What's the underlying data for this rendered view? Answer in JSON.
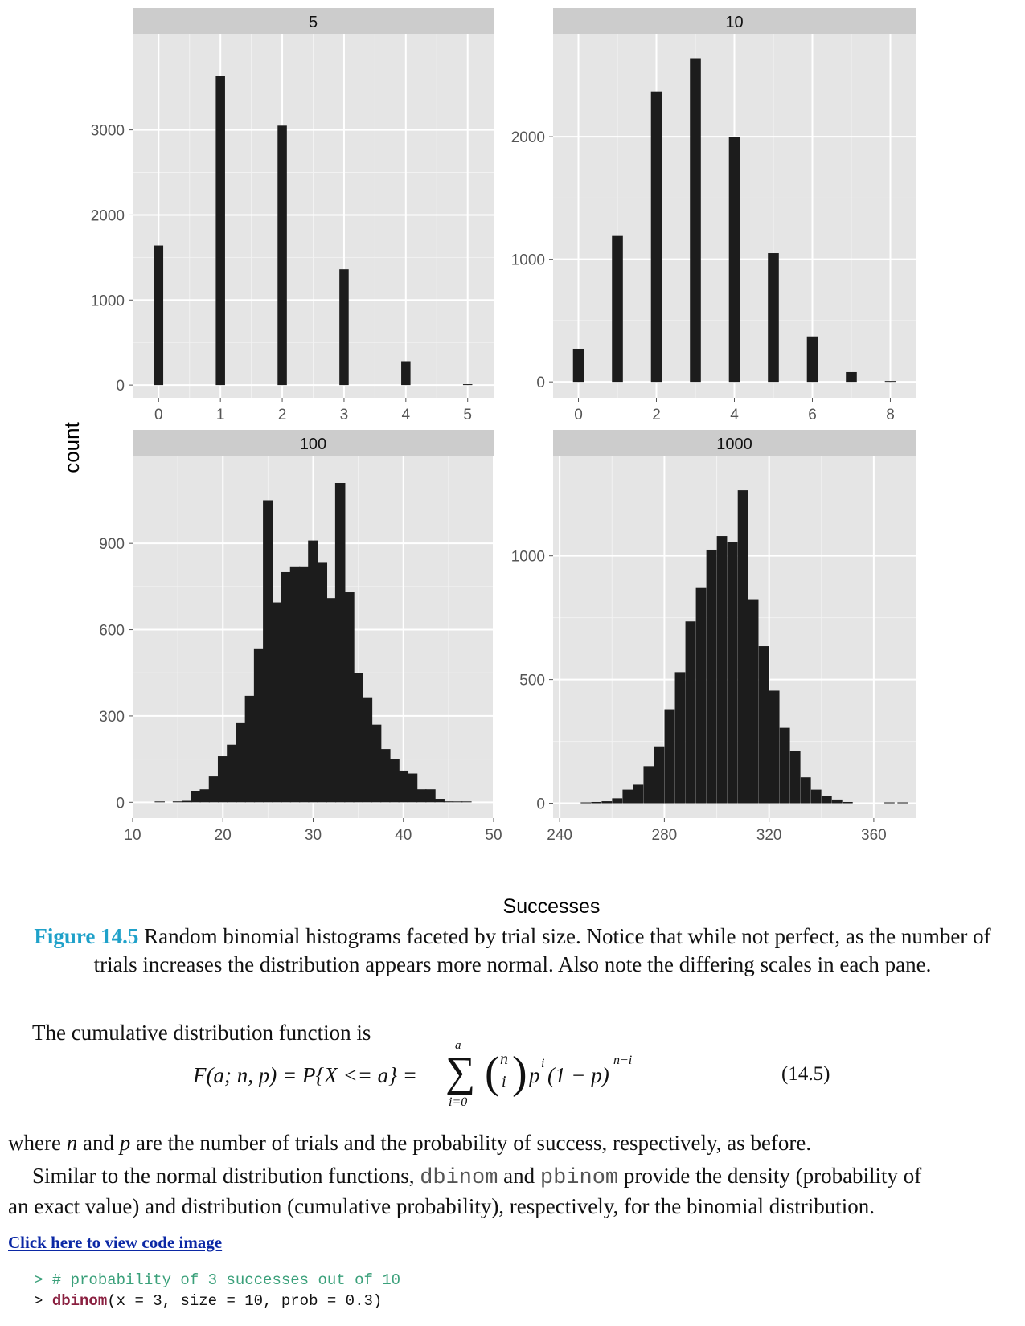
{
  "chart_data": [
    {
      "type": "bar",
      "title": "5",
      "x_ticks": [
        0,
        1,
        2,
        3,
        4,
        5
      ],
      "y_ticks": [
        0,
        1000,
        2000,
        3000
      ],
      "xlim": [
        -0.42,
        5.42
      ],
      "ylim": [
        -150,
        4130
      ],
      "bar_width": 0.15,
      "bars": [
        [
          0,
          1640
        ],
        [
          1,
          3630
        ],
        [
          2,
          3050
        ],
        [
          3,
          1360
        ],
        [
          4,
          280
        ],
        [
          5,
          10
        ]
      ]
    },
    {
      "type": "bar",
      "title": "10",
      "x_ticks": [
        0,
        2,
        4,
        6,
        8
      ],
      "y_ticks": [
        0,
        1000,
        2000
      ],
      "xlim": [
        -0.65,
        8.65
      ],
      "ylim": [
        -130,
        2840
      ],
      "bar_width": 0.28,
      "bars": [
        [
          0,
          270
        ],
        [
          1,
          1190
        ],
        [
          2,
          2370
        ],
        [
          3,
          2640
        ],
        [
          4,
          2000
        ],
        [
          5,
          1050
        ],
        [
          6,
          370
        ],
        [
          7,
          80
        ],
        [
          8,
          5
        ]
      ]
    },
    {
      "type": "bar",
      "title": "100",
      "x_ticks": [
        10,
        20,
        30,
        40,
        50
      ],
      "y_ticks": [
        0,
        300,
        600,
        900
      ],
      "xlim": [
        10,
        50
      ],
      "ylim": [
        -55,
        1205
      ],
      "bar_width": 1.12,
      "bars": [
        [
          13,
          2
        ],
        [
          15,
          3
        ],
        [
          16,
          5
        ],
        [
          17,
          40
        ],
        [
          18,
          45
        ],
        [
          19,
          90
        ],
        [
          20,
          160
        ],
        [
          21,
          200
        ],
        [
          22,
          275
        ],
        [
          23,
          370
        ],
        [
          24,
          535
        ],
        [
          25,
          1050
        ],
        [
          26,
          695
        ],
        [
          27,
          800
        ],
        [
          28,
          820
        ],
        [
          29,
          820
        ],
        [
          30,
          910
        ],
        [
          31,
          835
        ],
        [
          32,
          710
        ],
        [
          33,
          1110
        ],
        [
          34,
          730
        ],
        [
          35,
          450
        ],
        [
          36,
          365
        ],
        [
          37,
          270
        ],
        [
          38,
          185
        ],
        [
          39,
          150
        ],
        [
          40,
          110
        ],
        [
          41,
          100
        ],
        [
          42,
          45
        ],
        [
          43,
          45
        ],
        [
          44,
          12
        ],
        [
          45,
          3
        ],
        [
          46,
          2
        ],
        [
          47,
          1
        ]
      ]
    },
    {
      "type": "bar",
      "title": "1000",
      "x_ticks": [
        240,
        280,
        320,
        360
      ],
      "y_ticks": [
        0,
        500,
        1000
      ],
      "xlim": [
        237.5,
        376
      ],
      "ylim": [
        -60,
        1405
      ],
      "bar_width": 3.92,
      "bars": [
        [
          250,
          3
        ],
        [
          254,
          5
        ],
        [
          258,
          8
        ],
        [
          262,
          20
        ],
        [
          266,
          55
        ],
        [
          270,
          75
        ],
        [
          274,
          150
        ],
        [
          278,
          230
        ],
        [
          282,
          380
        ],
        [
          286,
          530
        ],
        [
          290,
          735
        ],
        [
          294,
          870
        ],
        [
          298,
          1025
        ],
        [
          302,
          1080
        ],
        [
          306,
          1055
        ],
        [
          310,
          1265
        ],
        [
          314,
          825
        ],
        [
          318,
          635
        ],
        [
          322,
          455
        ],
        [
          326,
          305
        ],
        [
          330,
          210
        ],
        [
          334,
          105
        ],
        [
          338,
          55
        ],
        [
          342,
          30
        ],
        [
          346,
          15
        ],
        [
          350,
          5
        ],
        [
          366,
          3
        ],
        [
          371,
          2
        ]
      ]
    }
  ],
  "axes": {
    "ylabel": "count",
    "xlabel": "Successes"
  },
  "caption": {
    "label": "Figure 14.5",
    "text": "Random binomial histograms faceted by trial size. Notice that while not perfect, as the number of trials increases the distribution appears more normal. Also note the differing scales in each pane."
  },
  "intro": "The cumulative distribution function is",
  "equation": {
    "lhs": "F(a; n, p) = P{X <= a} =",
    "sum_top": "a",
    "sum_bottom": "i=0",
    "binom_top": "n",
    "binom_bottom": "i",
    "term": "p",
    "term_sup1": "i",
    "term_mid": "(1 − p)",
    "term_sup2": "n−i",
    "number": "(14.5)"
  },
  "para1": {
    "t1": "where ",
    "v1": "n",
    "t2": " and ",
    "v2": "p",
    "t3": " are the number of trials and the probability of success, respectively, as before."
  },
  "para2": {
    "line1_a": "Similar to the normal distribution functions, ",
    "code1": "dbinom",
    "line1_b": " and ",
    "code2": "pbinom",
    "line1_c": " provide the density (probability of",
    "line2": "an exact value) and distribution (cumulative probability), respectively, for the binomial distribution."
  },
  "code_link": "Click here to view code image",
  "code": {
    "line1": "> # probability of 3 successes out of 10",
    "line2_prompt": "> ",
    "line2_fn": "dbinom",
    "line2_rest": "(x = 3, size = 10, prob = 0.3)"
  },
  "colors": {
    "panel_bg": "#e5e5e5",
    "strip_bg": "#cccccc",
    "bar": "#1c1c1c",
    "grid": "#ffffff",
    "caption_accent": "#1fa1c9",
    "link": "#0b28a5",
    "code_comment": "#3aa07a",
    "code_fn": "#8a2040"
  }
}
